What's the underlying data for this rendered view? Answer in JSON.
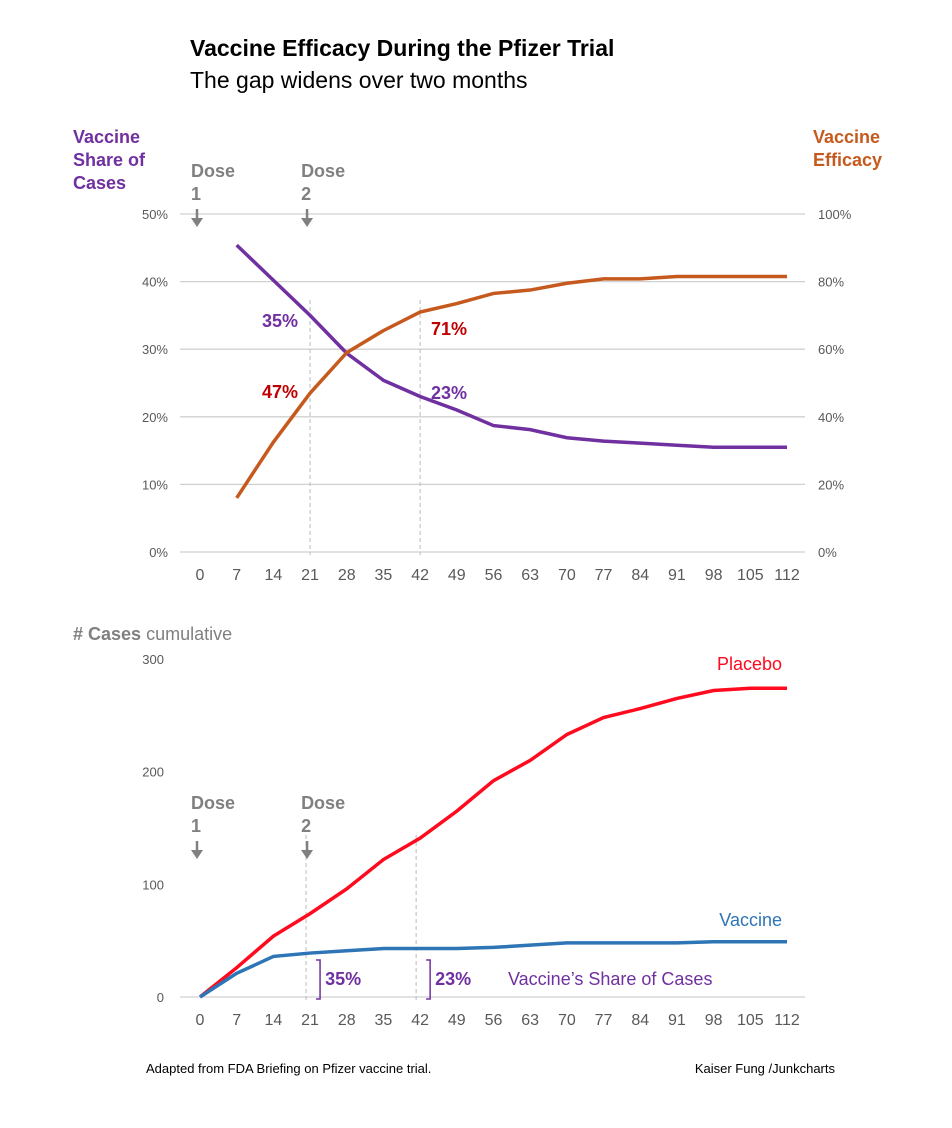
{
  "title": "Vaccine Efficacy During the Pfizer Trial",
  "subtitle": "The gap widens over two months",
  "footer_left": "Adapted from FDA Briefing on Pfizer vaccine trial.",
  "footer_right": "Kaiser Fung /Junkcharts",
  "colors": {
    "share": "#7030A0",
    "efficacy": "#C65A1E",
    "placebo": "#FF0A1E",
    "vaccine": "#2E75B6",
    "grey": "#808080",
    "label_red": "#C00000"
  },
  "dose_labels": [
    {
      "line1": "Dose",
      "line2": "1",
      "day": 0
    },
    {
      "line1": "Dose",
      "line2": "2",
      "day": 21
    }
  ],
  "chart_data": [
    {
      "type": "line",
      "title": "Vaccine Share of Cases vs Vaccine Efficacy",
      "ylabel_left": [
        "Vaccine",
        "Share of",
        "Cases"
      ],
      "ylabel_right": [
        "Vaccine",
        "Efficacy"
      ],
      "x": [
        7,
        14,
        21,
        28,
        35,
        42,
        49,
        56,
        63,
        70,
        77,
        84,
        91,
        98,
        105,
        112
      ],
      "x_ticks": [
        "0",
        "7",
        "14",
        "21",
        "28",
        "35",
        "42",
        "49",
        "56",
        "63",
        "70",
        "77",
        "84",
        "91",
        "98",
        "105",
        "112"
      ],
      "ylim_left": [
        0,
        50
      ],
      "ylim_right": [
        0,
        100
      ],
      "left_ticks": [
        "0%",
        "10%",
        "20%",
        "30%",
        "40%",
        "50%"
      ],
      "right_ticks": [
        "0%",
        "20%",
        "40%",
        "60%",
        "80%",
        "100%"
      ],
      "series": [
        {
          "name": "Vaccine Share of Cases",
          "axis": "left",
          "values": [
            45.4,
            40.2,
            35,
            29.4,
            25.4,
            23,
            21,
            18.7,
            18.1,
            16.9,
            16.4,
            16.1,
            15.8,
            15.5,
            15.5,
            15.5
          ]
        },
        {
          "name": "Vaccine Efficacy",
          "axis": "right",
          "values": [
            16,
            32.5,
            47,
            59,
            65.5,
            71,
            73.5,
            76.5,
            77.5,
            79.5,
            80.8,
            80.8,
            81.5,
            81.5,
            81.5,
            81.5
          ]
        }
      ],
      "annotations": [
        {
          "text": "35%",
          "series": "share",
          "day": 21
        },
        {
          "text": "47%",
          "series": "efficacy",
          "day": 21
        },
        {
          "text": "71%",
          "series": "efficacy",
          "day": 42
        },
        {
          "text": "23%",
          "series": "share",
          "day": 42
        }
      ]
    },
    {
      "type": "line",
      "title_bold": "# Cases",
      "title_rest": " cumulative",
      "x": [
        0,
        7,
        14,
        21,
        28,
        35,
        42,
        49,
        56,
        63,
        70,
        77,
        84,
        91,
        98,
        105,
        112
      ],
      "x_ticks": [
        "0",
        "7",
        "14",
        "21",
        "28",
        "35",
        "42",
        "49",
        "56",
        "63",
        "70",
        "77",
        "84",
        "91",
        "98",
        "105",
        "112"
      ],
      "ylim": [
        0,
        300
      ],
      "y_ticks": [
        "0",
        "100",
        "200",
        "300"
      ],
      "series": [
        {
          "name": "Placebo",
          "values": [
            0,
            26,
            54,
            74,
            96,
            122,
            141,
            165,
            192,
            210,
            233,
            248,
            256,
            265,
            272,
            274,
            274
          ]
        },
        {
          "name": "Vaccine",
          "values": [
            0,
            21,
            36,
            39,
            41,
            43,
            43,
            43,
            44,
            46,
            48,
            48,
            48,
            48,
            49,
            49,
            49
          ]
        }
      ],
      "annotations": [
        {
          "text": "35%",
          "day": 21
        },
        {
          "text": "23%",
          "day": 42
        },
        {
          "text": "Vaccine’s Share of Cases"
        }
      ]
    }
  ]
}
